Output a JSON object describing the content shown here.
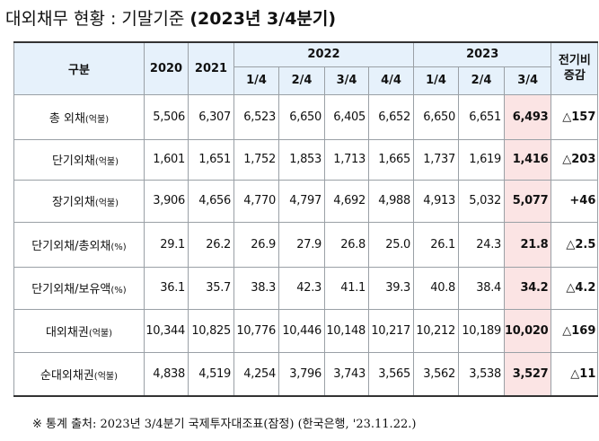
{
  "title": {
    "main": "대외채무 현황 : 기말기준 ",
    "bold": "(2023년 3/4분기)"
  },
  "header": {
    "category": "구분",
    "y2020": "2020",
    "y2021": "2021",
    "y2022": "2022",
    "y2023": "2023",
    "change_line1": "전기비",
    "change_line2": "증감",
    "quarters_2022": [
      "1/4",
      "2/4",
      "3/4",
      "4/4"
    ],
    "quarters_2023": [
      "1/4",
      "2/4",
      "3/4"
    ]
  },
  "rows": [
    {
      "label": "총 외채",
      "unit": "(억불)",
      "indent": false,
      "values": [
        "5,506",
        "6,307",
        "6,523",
        "6,650",
        "6,405",
        "6,652",
        "6,650",
        "6,651"
      ],
      "current": "6,493",
      "change": "△157"
    },
    {
      "label": "단기외채",
      "unit": "(억불)",
      "indent": true,
      "values": [
        "1,601",
        "1,651",
        "1,752",
        "1,853",
        "1,713",
        "1,665",
        "1,737",
        "1,619"
      ],
      "current": "1,416",
      "change": "△203"
    },
    {
      "label": "장기외채",
      "unit": "(억불)",
      "indent": true,
      "values": [
        "3,906",
        "4,656",
        "4,770",
        "4,797",
        "4,692",
        "4,988",
        "4,913",
        "5,032"
      ],
      "current": "5,077",
      "change": "+46"
    },
    {
      "label": "단기외채/총외채",
      "unit": "(%)",
      "indent": false,
      "values": [
        "29.1",
        "26.2",
        "26.9",
        "27.9",
        "26.8",
        "25.0",
        "26.1",
        "24.3"
      ],
      "current": "21.8",
      "change": "△2.5"
    },
    {
      "label": "단기외채/보유액",
      "unit": "(%)",
      "indent": false,
      "values": [
        "36.1",
        "35.7",
        "38.3",
        "42.3",
        "41.1",
        "39.3",
        "40.8",
        "38.4"
      ],
      "current": "34.2",
      "change": "△4.2"
    },
    {
      "label": "대외채권",
      "unit": "(억불)",
      "indent": false,
      "values": [
        "10,344",
        "10,825",
        "10,776",
        "10,446",
        "10,148",
        "10,217",
        "10,212",
        "10,189"
      ],
      "current": "10,020",
      "change": "△169"
    },
    {
      "label": "순대외채권",
      "unit": "(억불)",
      "indent": false,
      "values": [
        "4,838",
        "4,519",
        "4,254",
        "3,796",
        "3,743",
        "3,565",
        "3,562",
        "3,538"
      ],
      "current": "3,527",
      "change": "△11"
    }
  ],
  "source": {
    "mark": "※",
    "text": " 통계 출처: 2023년 3/4분기 국제투자대조표(잠정) (한국은행, '23.11.22.)"
  }
}
